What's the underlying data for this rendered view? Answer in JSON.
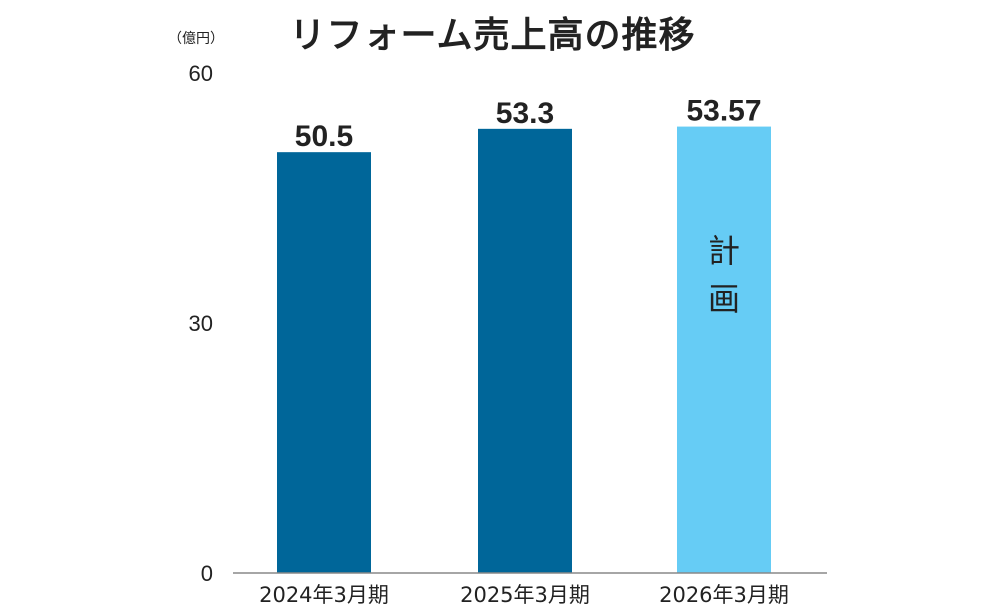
{
  "chart_data": {
    "type": "bar",
    "title": "リフォーム売上高の推移",
    "unit_label": "（億円）",
    "categories": [
      "2024年3月期",
      "2025年3月期",
      "2026年3月期"
    ],
    "values": [
      50.5,
      53.3,
      53.57
    ],
    "value_labels": [
      "50.5",
      "53.3",
      "53.57"
    ],
    "bar_colors": [
      "#006699",
      "#006699",
      "#66CCF5"
    ],
    "bar_annotations": [
      "",
      "",
      "計画"
    ],
    "yticks": [
      0,
      30,
      60
    ],
    "ylim": [
      0,
      60
    ],
    "grid": false,
    "legend": "none"
  }
}
